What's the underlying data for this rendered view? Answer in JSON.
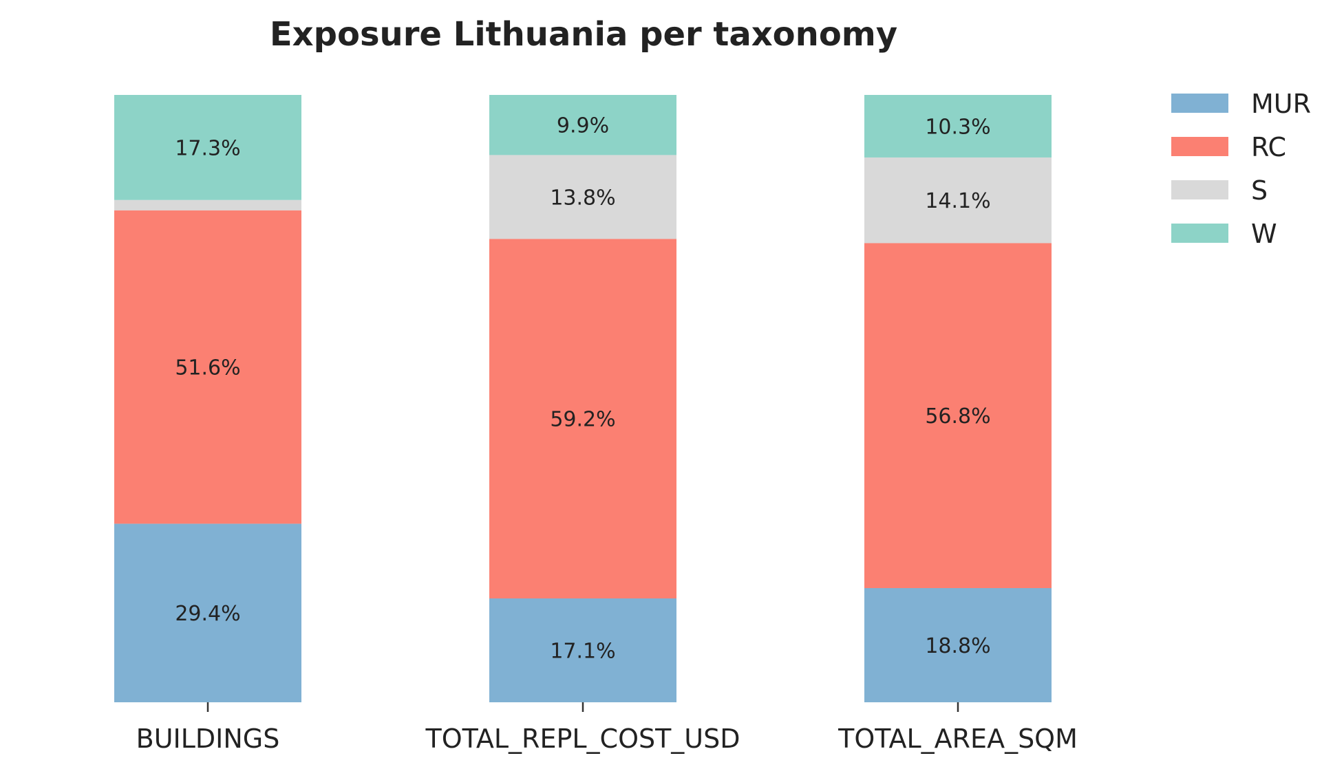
{
  "chart_data": {
    "type": "bar",
    "stacked": true,
    "normalized_percent": true,
    "title": "Exposure Lithuania per taxonomy",
    "xlabel": "",
    "ylabel": "",
    "ylim": [
      0,
      100
    ],
    "grid": false,
    "legend_position": "top-right",
    "categories": [
      "BUILDINGS",
      "TOTAL_REPL_COST_USD",
      "TOTAL_AREA_SQM"
    ],
    "series": [
      {
        "name": "MUR",
        "color": "#80b1d3",
        "values": [
          29.4,
          17.1,
          18.8
        ],
        "labels": [
          "29.4%",
          "17.1%",
          "18.8%"
        ]
      },
      {
        "name": "RC",
        "color": "#fb8072",
        "values": [
          51.6,
          59.2,
          56.8
        ],
        "labels": [
          "51.6%",
          "59.2%",
          "56.8%"
        ]
      },
      {
        "name": "S",
        "color": "#d9d9d9",
        "values": [
          1.7,
          13.8,
          14.1
        ],
        "labels": [
          "",
          "13.8%",
          "14.1%"
        ]
      },
      {
        "name": "W",
        "color": "#8dd3c7",
        "values": [
          17.3,
          9.9,
          10.3
        ],
        "labels": [
          "17.3%",
          "9.9%",
          "10.3%"
        ]
      }
    ]
  }
}
